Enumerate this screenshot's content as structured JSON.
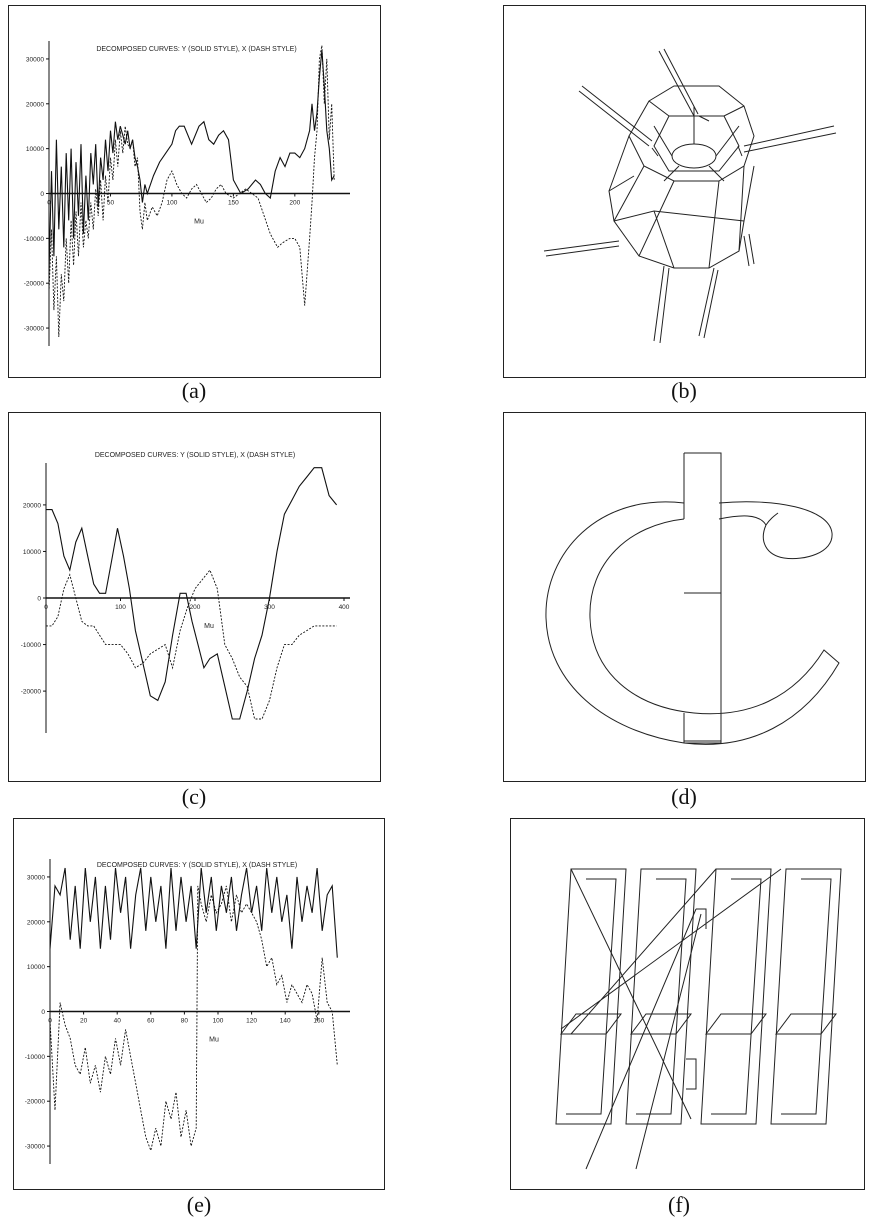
{
  "captions": {
    "a": "(a)",
    "b": "(b)",
    "c": "(c)",
    "d": "(d)",
    "e": "(e)",
    "f": "(f)"
  },
  "chart_data": [
    {
      "panel": "a",
      "type": "line",
      "title": "DECOMPOSED CURVES: Y (SOLID STYLE), X (DASH STYLE)",
      "xlabel": "Mu",
      "ylabel": "",
      "xlim": [
        0,
        240
      ],
      "ylim": [
        -34000,
        34000
      ],
      "xticks": [
        0,
        50,
        100,
        150,
        200
      ],
      "yticks": [
        30000,
        20000,
        10000,
        0,
        -10000,
        -20000,
        -30000
      ],
      "grid": false,
      "series": [
        {
          "style": "solid",
          "x": [
            0,
            2,
            4,
            6,
            8,
            10,
            12,
            14,
            16,
            18,
            20,
            22,
            24,
            26,
            28,
            30,
            32,
            34,
            36,
            38,
            40,
            42,
            44,
            46,
            48,
            50,
            52,
            54,
            56,
            58,
            60,
            62,
            64,
            66,
            68,
            70,
            72,
            74,
            76,
            78,
            80,
            85,
            90,
            95,
            100,
            103,
            106,
            110,
            116,
            122,
            126,
            130,
            134,
            138,
            142,
            146,
            150,
            156,
            162,
            168,
            172,
            176,
            180,
            184,
            188,
            192,
            196,
            200,
            204,
            208,
            212,
            214,
            216,
            218,
            220,
            222,
            224,
            226,
            228,
            230,
            232
          ],
          "values": [
            -18000,
            5000,
            -14000,
            12000,
            -8000,
            6000,
            -12000,
            9000,
            -6000,
            10000,
            -10000,
            7000,
            -5000,
            11000,
            -9000,
            4000,
            -6000,
            9000,
            2000,
            11000,
            -3000,
            8000,
            3000,
            12000,
            5000,
            14000,
            9000,
            16000,
            12000,
            15000,
            13000,
            11000,
            14000,
            10000,
            12000,
            8000,
            6000,
            3000,
            -2000,
            2000,
            0,
            4000,
            7000,
            9000,
            11000,
            14000,
            15000,
            15000,
            11000,
            15000,
            16000,
            12000,
            11000,
            13000,
            14000,
            12000,
            3000,
            0,
            1000,
            3000,
            2000,
            0,
            -1000,
            5000,
            8000,
            6000,
            9000,
            9000,
            8000,
            10000,
            14000,
            20000,
            14000,
            18000,
            26000,
            32000,
            24000,
            14000,
            10000,
            3000,
            4000
          ]
        },
        {
          "style": "dash",
          "x": [
            0,
            2,
            4,
            6,
            8,
            10,
            12,
            14,
            16,
            18,
            20,
            22,
            24,
            26,
            28,
            30,
            32,
            34,
            36,
            38,
            40,
            42,
            44,
            46,
            48,
            50,
            52,
            54,
            56,
            58,
            60,
            62,
            64,
            66,
            68,
            70,
            72,
            74,
            76,
            78,
            80,
            84,
            88,
            92,
            96,
            100,
            104,
            108,
            112,
            116,
            120,
            124,
            128,
            132,
            136,
            140,
            144,
            150,
            160,
            170,
            180,
            186,
            190,
            196,
            200,
            204,
            208,
            212,
            214,
            216,
            218,
            220,
            222,
            224,
            226,
            228,
            230,
            232
          ],
          "values": [
            -22000,
            -8000,
            -26000,
            -14000,
            -32000,
            -18000,
            -24000,
            -10000,
            -20000,
            -6000,
            -16000,
            -4000,
            -14000,
            -2000,
            -12000,
            -6000,
            -10000,
            -2000,
            -8000,
            1000,
            -5000,
            3000,
            -6000,
            4000,
            -2000,
            8000,
            3000,
            12000,
            6000,
            14000,
            9000,
            15000,
            11000,
            10000,
            12000,
            6000,
            8000,
            -4000,
            -8000,
            -2000,
            -6000,
            -3000,
            -5000,
            -2000,
            3000,
            5000,
            2000,
            0,
            -1000,
            1000,
            2000,
            0,
            -2000,
            -1000,
            1000,
            2000,
            0,
            -1000,
            1000,
            -1000,
            -9000,
            -12000,
            -11000,
            -10000,
            -10000,
            -12000,
            -25000,
            -10000,
            -2000,
            8000,
            14000,
            30000,
            33000,
            20000,
            30000,
            12000,
            20000,
            3000
          ]
        }
      ]
    },
    {
      "panel": "c",
      "type": "line",
      "title": "DECOMPOSED CURVES: Y (SOLID STYLE), X (DASH STYLE)",
      "xlabel": "Mu",
      "ylabel": "",
      "xlim": [
        0,
        400
      ],
      "ylim": [
        -29000,
        29000
      ],
      "xticks": [
        0,
        100,
        200,
        300,
        400
      ],
      "yticks": [
        20000,
        10000,
        0,
        -10000,
        -20000
      ],
      "grid": false,
      "series": [
        {
          "style": "solid",
          "x": [
            0,
            8,
            16,
            24,
            32,
            40,
            48,
            56,
            64,
            72,
            80,
            88,
            96,
            104,
            112,
            120,
            130,
            140,
            150,
            160,
            170,
            180,
            188,
            196,
            204,
            212,
            220,
            230,
            240,
            250,
            260,
            270,
            280,
            290,
            300,
            310,
            320,
            330,
            340,
            350,
            360,
            370,
            380,
            390
          ],
          "values": [
            19000,
            19000,
            16000,
            9000,
            6000,
            12000,
            15000,
            9000,
            3000,
            1000,
            1000,
            8000,
            15000,
            9000,
            2000,
            -7000,
            -14000,
            -21000,
            -22000,
            -18000,
            -8000,
            1000,
            1000,
            -5000,
            -10000,
            -15000,
            -13000,
            -12000,
            -19000,
            -26000,
            -26000,
            -20000,
            -13000,
            -8000,
            0,
            10000,
            18000,
            21000,
            24000,
            26000,
            28000,
            28000,
            22000,
            20000
          ]
        },
        {
          "style": "dash",
          "x": [
            0,
            8,
            16,
            24,
            32,
            40,
            48,
            56,
            64,
            72,
            80,
            90,
            100,
            110,
            120,
            130,
            140,
            150,
            160,
            170,
            180,
            190,
            200,
            210,
            220,
            230,
            240,
            250,
            260,
            270,
            280,
            290,
            300,
            310,
            320,
            330,
            340,
            350,
            360,
            370,
            380,
            390
          ],
          "values": [
            -6000,
            -6000,
            -4000,
            2000,
            5000,
            0,
            -5000,
            -6000,
            -6000,
            -8000,
            -10000,
            -10000,
            -10000,
            -12000,
            -15000,
            -14000,
            -12000,
            -11000,
            -10000,
            -15000,
            -7000,
            -2000,
            2000,
            4000,
            6000,
            2000,
            -10000,
            -13000,
            -17000,
            -19000,
            -26000,
            -26000,
            -22000,
            -15000,
            -10000,
            -10000,
            -8000,
            -7000,
            -6000,
            -6000,
            -6000,
            -6000
          ]
        }
      ]
    },
    {
      "panel": "e",
      "type": "line",
      "title": "DECOMPOSED CURVES: Y (SOLID STYLE), X (DASH STYLE)",
      "xlabel": "Mu",
      "ylabel": "",
      "xlim": [
        0,
        175
      ],
      "ylim": [
        -34000,
        34000
      ],
      "xticks": [
        0,
        20,
        40,
        60,
        80,
        100,
        120,
        140,
        160
      ],
      "yticks": [
        30000,
        20000,
        10000,
        0,
        -10000,
        -20000,
        -30000
      ],
      "grid": false,
      "series": [
        {
          "style": "solid",
          "x": [
            0,
            3,
            6,
            9,
            12,
            15,
            18,
            21,
            24,
            27,
            30,
            33,
            36,
            39,
            42,
            45,
            48,
            51,
            54,
            57,
            60,
            63,
            66,
            69,
            72,
            75,
            78,
            81,
            84,
            87,
            90,
            93,
            96,
            99,
            102,
            105,
            108,
            111,
            114,
            117,
            120,
            123,
            126,
            129,
            132,
            135,
            138,
            141,
            144,
            147,
            150,
            153,
            156,
            159,
            162,
            165,
            168,
            171
          ],
          "values": [
            14000,
            28000,
            26000,
            32000,
            16000,
            28000,
            14000,
            32000,
            20000,
            30000,
            14000,
            28000,
            16000,
            32000,
            22000,
            30000,
            14000,
            26000,
            32000,
            18000,
            30000,
            20000,
            28000,
            14000,
            32000,
            18000,
            30000,
            20000,
            28000,
            14000,
            32000,
            22000,
            30000,
            18000,
            28000,
            22000,
            30000,
            18000,
            26000,
            32000,
            22000,
            28000,
            18000,
            32000,
            22000,
            30000,
            20000,
            26000,
            14000,
            30000,
            20000,
            28000,
            22000,
            32000,
            18000,
            26000,
            28000,
            12000
          ]
        },
        {
          "style": "dash",
          "x": [
            0,
            3,
            6,
            9,
            12,
            15,
            18,
            21,
            24,
            27,
            30,
            33,
            36,
            39,
            42,
            45,
            48,
            51,
            54,
            57,
            60,
            63,
            66,
            69,
            72,
            75,
            78,
            81,
            84,
            87,
            88,
            90,
            93,
            96,
            99,
            102,
            105,
            108,
            111,
            114,
            117,
            120,
            123,
            126,
            129,
            132,
            135,
            138,
            141,
            144,
            147,
            150,
            153,
            156,
            159,
            162,
            165,
            168,
            171
          ],
          "values": [
            -2000,
            -22000,
            2000,
            -3000,
            -6000,
            -12000,
            -14000,
            -8000,
            -16000,
            -12000,
            -18000,
            -10000,
            -14000,
            -6000,
            -12000,
            -4000,
            -10000,
            -16000,
            -22000,
            -28000,
            -31000,
            -26000,
            -30000,
            -20000,
            -24000,
            -18000,
            -28000,
            -22000,
            -30000,
            -26000,
            28000,
            24000,
            20000,
            26000,
            22000,
            24000,
            28000,
            20000,
            26000,
            22000,
            24000,
            22000,
            20000,
            16000,
            10000,
            12000,
            6000,
            8000,
            2000,
            6000,
            4000,
            2000,
            6000,
            4000,
            -2000,
            12000,
            2000,
            0,
            -12000
          ]
        }
      ]
    }
  ]
}
